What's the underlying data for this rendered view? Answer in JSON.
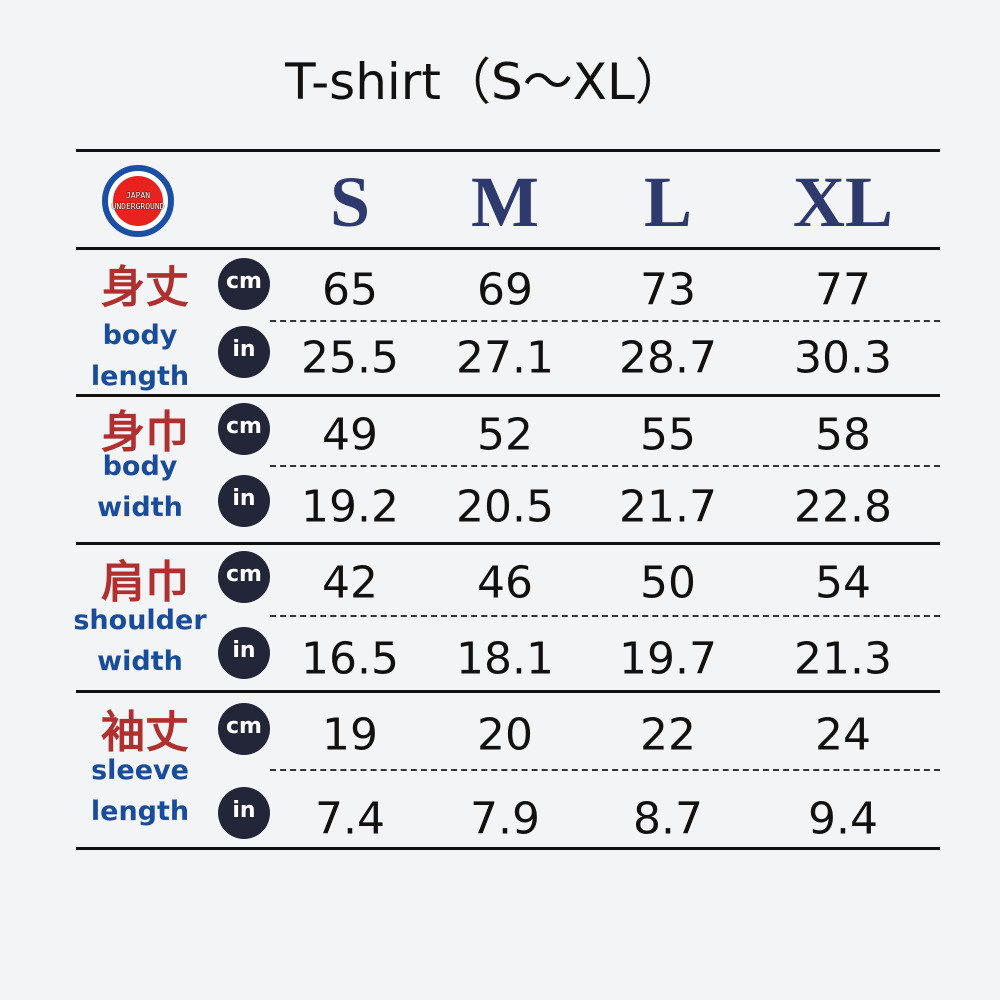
{
  "title": "T-shirt（S〜XL）",
  "logo": {
    "line1": "JAPAN",
    "line2": "UNDERGROUND",
    "colors": {
      "ring": "#1b4fa5",
      "center": "#e8231f"
    }
  },
  "sizes": [
    "S",
    "M",
    "L",
    "XL"
  ],
  "units": {
    "cm": "cm",
    "in": "in"
  },
  "colors": {
    "size_header": "#2e3a6e",
    "kanji": "#b0302f",
    "english": "#1a4c9c",
    "badge": "#232538"
  },
  "rows": [
    {
      "kanji": "身丈",
      "english1": "body",
      "english2": "length",
      "cm": [
        "65",
        "69",
        "73",
        "77"
      ],
      "in": [
        "25.5",
        "27.1",
        "28.7",
        "30.3"
      ]
    },
    {
      "kanji": "身巾",
      "english1": "body",
      "english2": "width",
      "cm": [
        "49",
        "52",
        "55",
        "58"
      ],
      "in": [
        "19.2",
        "20.5",
        "21.7",
        "22.8"
      ]
    },
    {
      "kanji": "肩巾",
      "english1": "shoulder",
      "english2": "width",
      "cm": [
        "42",
        "46",
        "50",
        "54"
      ],
      "in": [
        "16.5",
        "18.1",
        "19.7",
        "21.3"
      ]
    },
    {
      "kanji": "袖丈",
      "english1": "sleeve",
      "english2": "length",
      "cm": [
        "19",
        "20",
        "22",
        "24"
      ],
      "in": [
        "7.4",
        "7.9",
        "8.7",
        "9.4"
      ]
    }
  ]
}
